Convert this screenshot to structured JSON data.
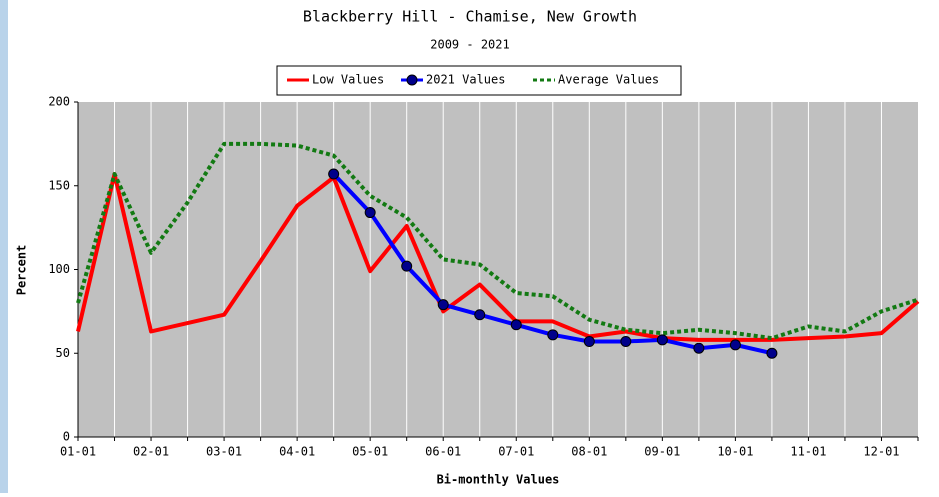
{
  "chart_data": {
    "type": "line",
    "title": "Blackberry Hill - Chamise, New Growth",
    "subtitle": "2009 - 2021",
    "x_label": "Bi-monthly Values",
    "y_label": "Percent",
    "categories": [
      "01-01",
      null,
      "02-01",
      null,
      "03-01",
      null,
      "04-01",
      null,
      "05-01",
      null,
      "06-01",
      null,
      "07-01",
      null,
      "08-01",
      null,
      "09-01",
      null,
      "10-01",
      null,
      "11-01",
      null,
      "12-01",
      null
    ],
    "series": [
      {
        "name": "Low Values",
        "color": "#ff0000",
        "values": [
          63,
          157,
          63,
          68,
          73,
          105,
          138,
          155,
          99,
          126,
          75,
          91,
          69,
          69,
          60,
          63,
          59,
          58,
          58,
          58,
          59,
          60,
          62,
          81
        ]
      },
      {
        "name": "2021 Values",
        "color": "#0000ff",
        "values": [
          null,
          null,
          null,
          null,
          null,
          null,
          null,
          157,
          134,
          102,
          79,
          73,
          67,
          61,
          57,
          57,
          58,
          53,
          55,
          50,
          null,
          null,
          null,
          null
        ]
      },
      {
        "name": "Average Values",
        "color": "#137a13",
        "values": [
          80,
          157,
          110,
          140,
          175,
          175,
          174,
          168,
          144,
          131,
          106,
          103,
          86,
          84,
          70,
          64,
          62,
          64,
          62,
          59,
          66,
          63,
          75,
          82
        ]
      }
    ],
    "ylim": [
      0,
      200
    ],
    "yticks": [
      0,
      50,
      100,
      150,
      200
    ],
    "grid": true
  }
}
